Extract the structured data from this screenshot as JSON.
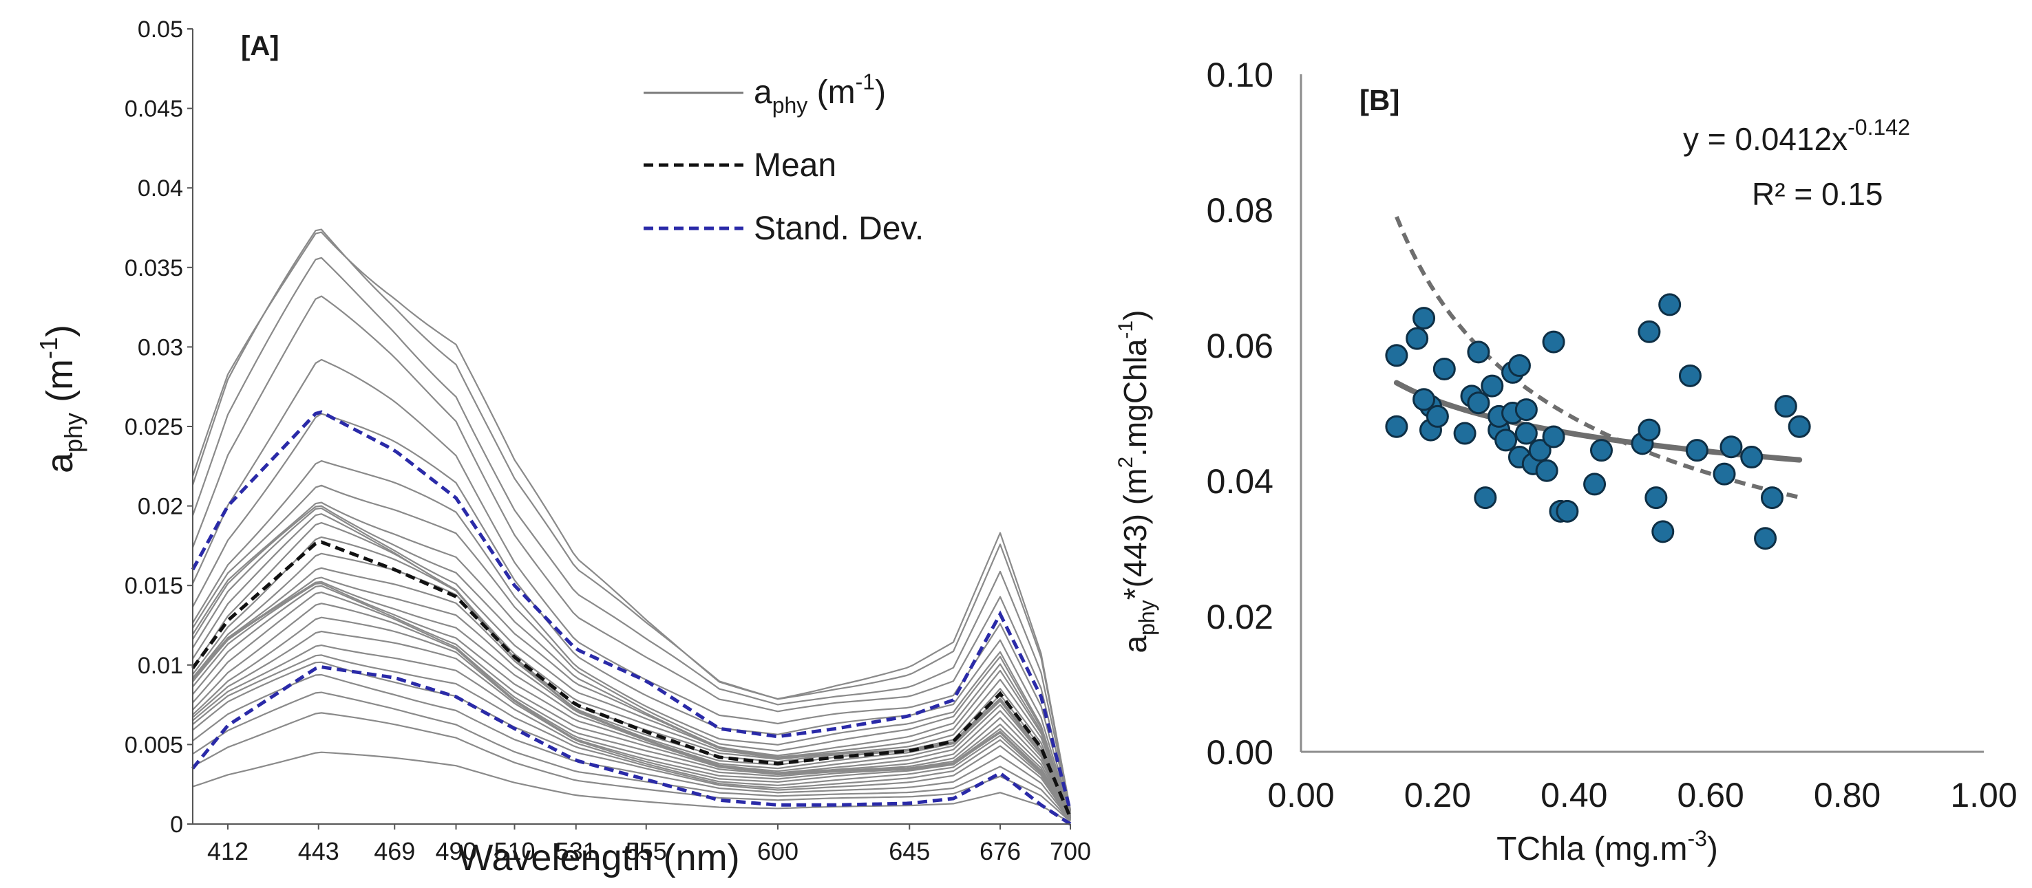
{
  "chart_data": [
    {
      "panel_label": "[A]",
      "type": "line",
      "xlabel": "Wavelength (nm)",
      "ylabel_main": "a",
      "ylabel_sub": "phy",
      "ylabel_tail": " (m",
      "ylabel_sup": "-1",
      "ylabel_close": ")",
      "x_ticks": [
        412,
        443,
        469,
        490,
        510,
        531,
        555,
        600,
        645,
        676,
        700
      ],
      "y_ticks": [
        "0",
        "0.005",
        "0.01",
        "0.015",
        "0.02",
        "0.025",
        "0.03",
        "0.035",
        "0.04",
        "0.045",
        "0.05"
      ],
      "xlim": [
        400,
        700
      ],
      "ylim": [
        0,
        0.05
      ],
      "legend": {
        "position": "top-right",
        "entries": [
          {
            "main": "a",
            "sub": "phy",
            "tail": " (m",
            "sup": "-1",
            "close": ")",
            "style": "solid",
            "color": "#7a7a7a"
          },
          {
            "main": "Mean",
            "style": "dashed",
            "color": "#111111"
          },
          {
            "main": "Stand. Dev.",
            "style": "dashed",
            "color": "#2a2aa8"
          }
        ]
      },
      "profile": {
        "x": [
          400,
          412,
          443,
          469,
          490,
          510,
          531,
          555,
          580,
          600,
          620,
          645,
          660,
          676,
          690,
          700
        ],
        "mean": [
          0.0098,
          0.0128,
          0.0178,
          0.016,
          0.0143,
          0.0105,
          0.0075,
          0.0058,
          0.0042,
          0.0038,
          0.0042,
          0.0046,
          0.0052,
          0.0082,
          0.0048,
          0.0004
        ],
        "sd_upper": [
          0.016,
          0.02,
          0.026,
          0.0235,
          0.0205,
          0.015,
          0.011,
          0.009,
          0.006,
          0.0055,
          0.006,
          0.0068,
          0.0078,
          0.0132,
          0.008,
          0.0008
        ],
        "sd_lower": [
          0.0035,
          0.0062,
          0.0099,
          0.0092,
          0.008,
          0.006,
          0.004,
          0.0028,
          0.0015,
          0.0012,
          0.0012,
          0.0013,
          0.0016,
          0.0032,
          0.0012,
          0.0
        ]
      },
      "spectra_scales": [
        0.25,
        0.38,
        0.45,
        0.52,
        0.58,
        0.62,
        0.66,
        0.7,
        0.73,
        0.76,
        0.79,
        0.82,
        0.85,
        0.88,
        0.91,
        0.94,
        0.97,
        1.0,
        1.03,
        1.06,
        1.1,
        1.14,
        1.18,
        1.25,
        1.32,
        1.45,
        1.6,
        1.8,
        1.95,
        2.1,
        2.15
      ],
      "colors": {
        "spectra": "#8a8a8a",
        "mean": "#111111",
        "sd": "#2a2aa8",
        "axis": "#555555"
      }
    },
    {
      "panel_label": "[B]",
      "type": "scatter",
      "xlabel": "TChla (mg.m",
      "xlabel_sup": "-3",
      "xlabel_close": ")",
      "ylabel_main": "a",
      "ylabel_sub": "phy",
      "ylabel_tail": "*(443) (m",
      "ylabel_sup1": "2",
      "ylabel_mid": ".mgChla",
      "ylabel_sup2": "-1",
      "ylabel_close": ")",
      "x_ticks": [
        "0.00",
        "0.20",
        "0.40",
        "0.60",
        "0.80",
        "1.00"
      ],
      "y_ticks": [
        "0.00",
        "0.02",
        "0.04",
        "0.06",
        "0.08",
        "0.10"
      ],
      "xlim": [
        0,
        1
      ],
      "ylim": [
        0,
        0.1
      ],
      "equation": "y = 0.0412x",
      "equation_exp": "-0.142",
      "r2": "R² = 0.15",
      "fit": {
        "a": 0.0412,
        "b": -0.142,
        "x_range": [
          0.14,
          0.73
        ]
      },
      "dashed_curve": {
        "a": 0.0326,
        "b": -0.45,
        "x_range": [
          0.14,
          0.73
        ]
      },
      "points": {
        "x": [
          0.14,
          0.14,
          0.17,
          0.18,
          0.19,
          0.19,
          0.2,
          0.18,
          0.21,
          0.24,
          0.25,
          0.26,
          0.26,
          0.27,
          0.28,
          0.29,
          0.29,
          0.3,
          0.31,
          0.31,
          0.32,
          0.32,
          0.33,
          0.33,
          0.34,
          0.35,
          0.36,
          0.37,
          0.37,
          0.38,
          0.39,
          0.43,
          0.44,
          0.5,
          0.51,
          0.51,
          0.52,
          0.54,
          0.53,
          0.57,
          0.58,
          0.62,
          0.63,
          0.66,
          0.68,
          0.69,
          0.71,
          0.73
        ],
        "y": [
          0.0585,
          0.048,
          0.061,
          0.064,
          0.0475,
          0.051,
          0.0495,
          0.052,
          0.0565,
          0.047,
          0.0525,
          0.059,
          0.0515,
          0.0375,
          0.054,
          0.0475,
          0.0495,
          0.046,
          0.056,
          0.05,
          0.057,
          0.0435,
          0.0505,
          0.047,
          0.0425,
          0.0445,
          0.0415,
          0.0605,
          0.0465,
          0.0355,
          0.0355,
          0.0395,
          0.0445,
          0.0455,
          0.0475,
          0.062,
          0.0375,
          0.066,
          0.0325,
          0.0555,
          0.0445,
          0.041,
          0.045,
          0.0435,
          0.0315,
          0.0375,
          0.051,
          0.048
        ]
      },
      "colors": {
        "point_fill": "#1f6e9c",
        "point_stroke": "#0e2f45",
        "fit": "#6e6e6e",
        "dashed": "#6e6e6e",
        "axis": "#8c8c8c"
      }
    }
  ]
}
